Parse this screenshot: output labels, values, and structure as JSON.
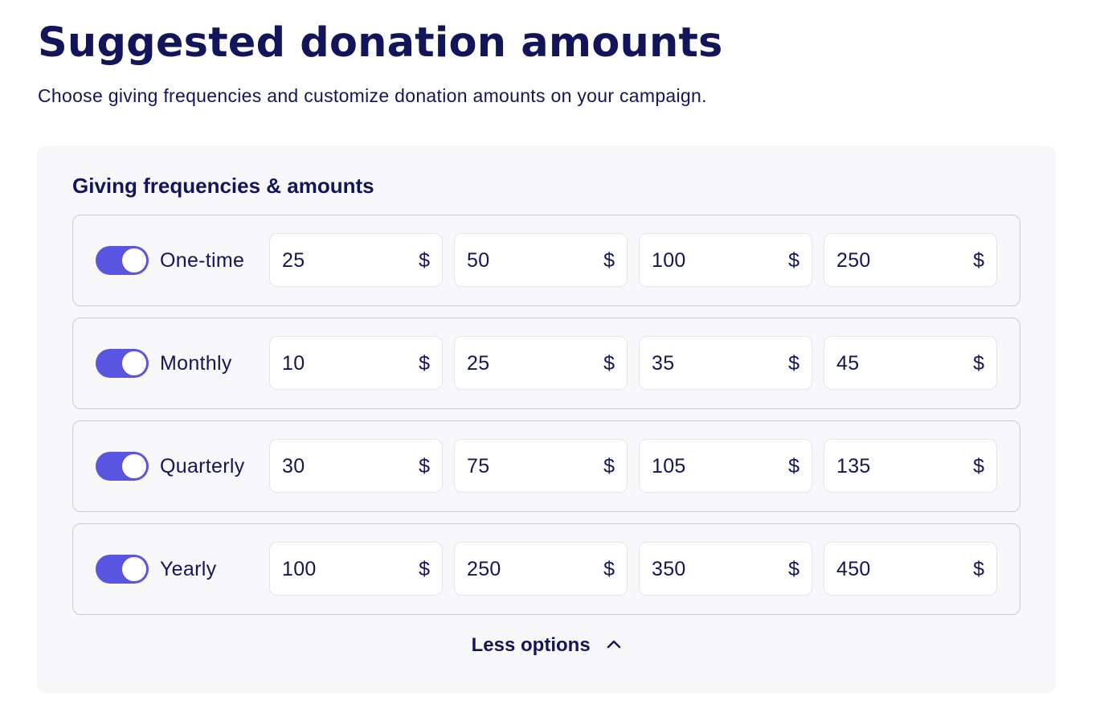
{
  "header": {
    "title": "Suggested donation amounts",
    "subtitle": "Choose giving frequencies and customize donation amounts on your campaign."
  },
  "panel": {
    "title": "Giving frequencies & amounts",
    "currency_symbol": "$",
    "less_options_label": "Less options",
    "less_options_icon": "chevron-up-icon",
    "toggle_color": "#5a55e0",
    "frequencies": [
      {
        "label": "One-time",
        "enabled": true,
        "amounts": [
          "25",
          "50",
          "100",
          "250"
        ]
      },
      {
        "label": "Monthly",
        "enabled": true,
        "amounts": [
          "10",
          "25",
          "35",
          "45"
        ]
      },
      {
        "label": "Quarterly",
        "enabled": true,
        "amounts": [
          "30",
          "75",
          "105",
          "135"
        ]
      },
      {
        "label": "Yearly",
        "enabled": true,
        "amounts": [
          "100",
          "250",
          "350",
          "450"
        ]
      }
    ]
  }
}
